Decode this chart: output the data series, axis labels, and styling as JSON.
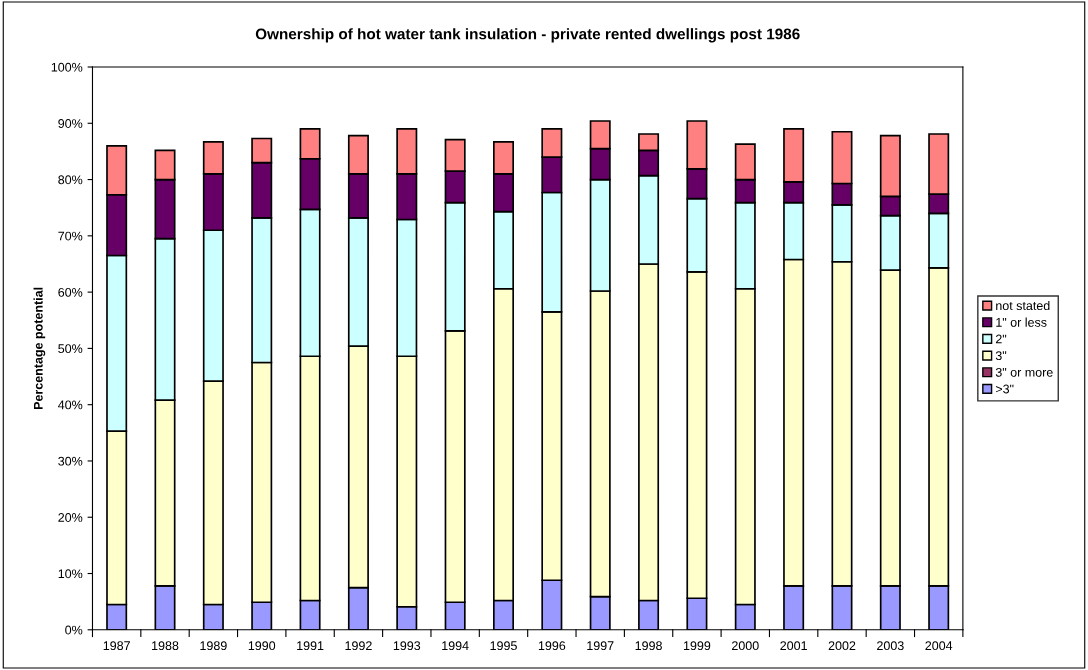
{
  "chart_data": {
    "type": "bar",
    "title": "Ownership of hot water tank insulation - private rented dwellings post 1986",
    "ylabel": "Percentage potential",
    "stacked": true,
    "legend": "right",
    "grid": false,
    "categories": [
      "1987",
      "1988",
      "1989",
      "1990",
      "1991",
      "1992",
      "1993",
      "1994",
      "1995",
      "1996",
      "1997",
      "1998",
      "1999",
      "2000",
      "2001",
      "2002",
      "2003",
      "2004"
    ],
    "ylim": [
      0,
      100
    ],
    "yticks": [
      {
        "value": 0,
        "label": "0%"
      },
      {
        "value": 10,
        "label": "10%"
      },
      {
        "value": 20,
        "label": "20%"
      },
      {
        "value": 30,
        "label": "30%"
      },
      {
        "value": 40,
        "label": "40%"
      },
      {
        "value": 50,
        "label": "50%"
      },
      {
        "value": 60,
        "label": "60%"
      },
      {
        "value": 70,
        "label": "70%"
      },
      {
        "value": 80,
        "label": "80%"
      },
      {
        "value": 90,
        "label": "90%"
      },
      {
        "value": 100,
        "label": "100%"
      }
    ],
    "series": [
      {
        "name": ">3\"",
        "color": "#9999ff",
        "values": [
          4.5,
          7.8,
          4.5,
          4.9,
          5.2,
          7.5,
          4.1,
          4.9,
          5.2,
          8.8,
          5.9,
          5.2,
          5.6,
          4.5,
          7.8,
          7.8,
          7.8,
          7.8
        ]
      },
      {
        "name": "3\" or more",
        "color": "#993366",
        "values": [
          null,
          null,
          null,
          null,
          null,
          null,
          null,
          null,
          null,
          null,
          null,
          null,
          null,
          null,
          null,
          null,
          null,
          null
        ]
      },
      {
        "name": "3\"",
        "color": "#ffffcc",
        "values": [
          30.8,
          33.0,
          39.7,
          42.6,
          43.4,
          42.9,
          44.5,
          48.2,
          55.4,
          47.7,
          54.3,
          59.8,
          58.0,
          56.1,
          58.0,
          57.6,
          56.1,
          56.5
        ]
      },
      {
        "name": "2\"",
        "color": "#ccffff",
        "values": [
          31.2,
          28.7,
          26.8,
          25.7,
          26.1,
          22.8,
          24.3,
          22.8,
          13.7,
          21.2,
          19.8,
          15.7,
          13.0,
          15.3,
          10.1,
          10.1,
          9.7,
          9.7
        ]
      },
      {
        "name": "1\" or less",
        "color": "#660066",
        "values": [
          10.8,
          10.5,
          10.0,
          9.8,
          9.0,
          7.8,
          8.1,
          5.6,
          6.7,
          6.3,
          5.5,
          4.5,
          5.3,
          4.1,
          3.7,
          3.8,
          3.4,
          3.4
        ]
      },
      {
        "name": "not stated",
        "color": "#ff8080",
        "values": [
          8.7,
          5.2,
          5.7,
          4.3,
          5.3,
          6.8,
          8.0,
          5.6,
          5.7,
          5.0,
          4.9,
          2.9,
          8.5,
          6.3,
          9.4,
          9.2,
          10.8,
          10.7
        ]
      }
    ]
  }
}
